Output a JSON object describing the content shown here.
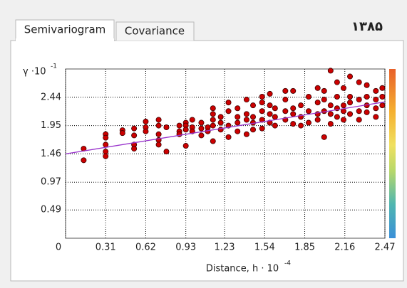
{
  "tabs": [
    "Semivariogram",
    "Covariance"
  ],
  "year_label": "۱۳۸۵",
  "chart_data": {
    "type": "scatter",
    "y_label": "γ ·10",
    "y_label_power": "-1",
    "x_label": "Distance, h · 10",
    "x_label_power": "-4",
    "x": [
      0.14,
      0.14,
      0.31,
      0.31,
      0.31,
      0.31,
      0.31,
      0.44,
      0.44,
      0.53,
      0.53,
      0.53,
      0.53,
      0.62,
      0.62,
      0.62,
      0.72,
      0.72,
      0.72,
      0.72,
      0.72,
      0.78,
      0.78,
      0.88,
      0.88,
      0.88,
      0.93,
      0.93,
      0.93,
      0.93,
      0.98,
      0.98,
      0.98,
      1.05,
      1.05,
      1.05,
      1.1,
      1.1,
      1.14,
      1.14,
      1.14,
      1.14,
      1.14,
      1.2,
      1.2,
      1.2,
      1.26,
      1.26,
      1.26,
      1.26,
      1.33,
      1.33,
      1.33,
      1.33,
      1.4,
      1.4,
      1.4,
      1.4,
      1.45,
      1.45,
      1.45,
      1.45,
      1.52,
      1.52,
      1.52,
      1.52,
      1.52,
      1.58,
      1.58,
      1.58,
      1.58,
      1.62,
      1.62,
      1.62,
      1.7,
      1.7,
      1.7,
      1.7,
      1.76,
      1.76,
      1.76,
      1.76,
      1.82,
      1.82,
      1.82,
      1.88,
      1.88,
      1.88,
      1.95,
      1.95,
      1.95,
      1.95,
      2.0,
      2.0,
      2.0,
      2.0,
      2.05,
      2.05,
      2.05,
      2.05,
      2.1,
      2.1,
      2.1,
      2.1,
      2.15,
      2.15,
      2.15,
      2.15,
      2.2,
      2.2,
      2.2,
      2.2,
      2.27,
      2.27,
      2.27,
      2.27,
      2.33,
      2.33,
      2.33,
      2.33,
      2.4,
      2.4,
      2.4,
      2.4,
      2.45,
      2.45,
      2.45
    ],
    "values": [
      1.55,
      1.35,
      1.8,
      1.74,
      1.62,
      1.5,
      1.42,
      1.87,
      1.82,
      1.9,
      1.78,
      1.62,
      1.55,
      2.02,
      1.92,
      1.85,
      1.7,
      1.95,
      2.05,
      1.8,
      1.62,
      1.92,
      1.5,
      1.85,
      1.95,
      1.8,
      2.0,
      1.95,
      1.88,
      1.6,
      2.05,
      1.92,
      1.85,
      1.9,
      2.0,
      1.78,
      1.92,
      1.85,
      2.25,
      2.15,
      2.05,
      1.95,
      1.68,
      2.1,
      2.0,
      1.88,
      2.35,
      2.2,
      1.95,
      1.75,
      2.25,
      2.1,
      2.0,
      1.85,
      2.4,
      2.15,
      2.05,
      1.8,
      2.3,
      2.1,
      2.0,
      1.88,
      2.45,
      2.35,
      2.2,
      2.05,
      1.9,
      2.5,
      2.3,
      2.15,
      2.0,
      2.25,
      2.1,
      1.95,
      2.55,
      2.4,
      2.2,
      2.05,
      2.55,
      2.25,
      2.15,
      1.98,
      2.3,
      2.1,
      1.95,
      2.45,
      2.2,
      2.0,
      2.6,
      2.35,
      2.15,
      2.05,
      2.4,
      2.2,
      1.75,
      2.55,
      2.9,
      2.3,
      2.15,
      1.98,
      2.7,
      2.45,
      2.25,
      2.1,
      2.6,
      2.3,
      2.2,
      2.05,
      2.8,
      2.45,
      2.35,
      2.15,
      2.7,
      2.4,
      2.2,
      2.05,
      2.65,
      2.45,
      2.3,
      2.18,
      2.55,
      2.4,
      2.25,
      2.1,
      2.6,
      2.45,
      2.3
    ],
    "color": "#cc0000",
    "trend_line": {
      "x": [
        0,
        2.47
      ],
      "y": [
        1.46,
        2.36
      ],
      "color": "#9933cc"
    },
    "xlim": [
      0,
      2.47
    ],
    "xticks": [
      0,
      0.31,
      0.62,
      0.93,
      1.23,
      1.54,
      1.85,
      2.16,
      2.47
    ],
    "ylim": [
      0,
      2.93
    ],
    "yticks": [
      0.49,
      0.97,
      1.46,
      1.95,
      2.44
    ],
    "grid": true
  }
}
